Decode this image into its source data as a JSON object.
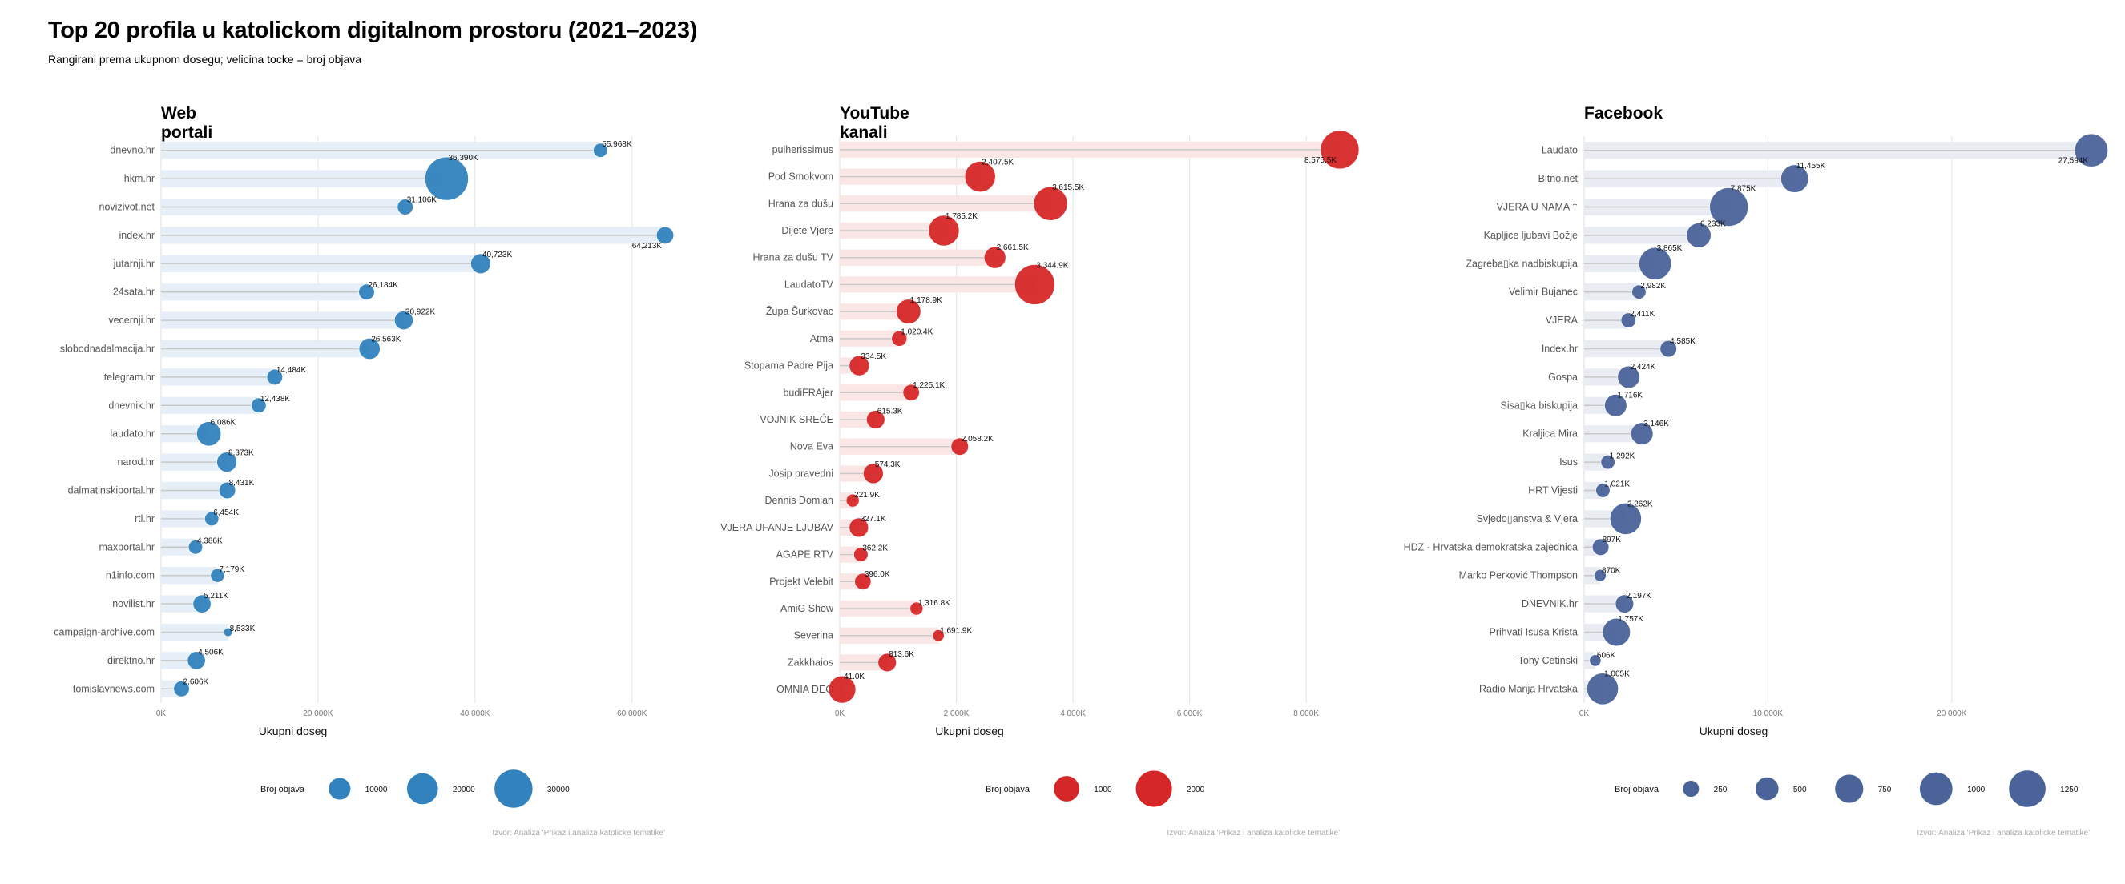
{
  "header": {
    "title": "Top 20 profila u katolickom digitalnom prostoru (2021–2023)",
    "subtitle": "Rangirani prema ukupnom dosegu; velicina tocke = broj objava"
  },
  "chart_data": [
    {
      "type": "scatter",
      "title": "Web portali",
      "xlabel": "Ukupni doseg",
      "ylabel": "",
      "xlim": [
        0,
        64213
      ],
      "xticks": [
        0,
        20000,
        40000,
        60000
      ],
      "xtick_labels": [
        "0K",
        "20 000K",
        "40 000K",
        "60 000K"
      ],
      "grid": true,
      "color": "#3182bd",
      "band_color": "#e6eef7",
      "categories": [
        "dnevno.hr",
        "hkm.hr",
        "novizivot.net",
        "index.hr",
        "jutarnji.hr",
        "24sata.hr",
        "vecernji.hr",
        "slobodnadalmacija.hr",
        "telegram.hr",
        "dnevnik.hr",
        "laudato.hr",
        "narod.hr",
        "dalmatinskiportal.hr",
        "rtl.hr",
        "maxportal.hr",
        "n1info.com",
        "novilist.hr",
        "campaign-archive.com",
        "direktno.hr",
        "tomislavnews.com"
      ],
      "values": [
        55968,
        36390,
        31106,
        64213,
        40723,
        26184,
        30922,
        26563,
        14484,
        12438,
        6086,
        8373,
        8431,
        6454,
        4386,
        7179,
        5211,
        8533,
        4506,
        2606
      ],
      "value_labels": [
        "55,968K",
        "36,390K",
        "31,106K",
        "64,213K",
        "40,723K",
        "26,184K",
        "30,922K",
        "26,563K",
        "14,484K",
        "12,438K",
        "6,086K",
        "8,373K",
        "8,431K",
        "6,454K",
        "4,386K",
        "7,179K",
        "5,211K",
        "8,533K",
        "4,506K",
        "2,606K"
      ],
      "sizes": [
        4000,
        38000,
        5000,
        6000,
        8000,
        5000,
        7000,
        9000,
        5000,
        4500,
        12000,
        8000,
        5500,
        4000,
        4000,
        3800,
        6500,
        1500,
        6500,
        5000
      ],
      "legend": {
        "title": "Broj objava",
        "values": [
          10000,
          20000,
          30000
        ],
        "labels": [
          "10000",
          "20000",
          "30000"
        ],
        "max_size": 38000
      },
      "source": "Izvor: Analiza 'Prikaz i analiza katolicke tematike'"
    },
    {
      "type": "scatter",
      "title": "YouTube kanali",
      "xlabel": "Ukupni doseg",
      "ylabel": "",
      "xlim": [
        0,
        8575.5
      ],
      "xticks": [
        0,
        2000,
        4000,
        6000,
        8000
      ],
      "xtick_labels": [
        "0K",
        "2 000K",
        "4 000K",
        "6 000K",
        "8 000K"
      ],
      "grid": true,
      "color": "#d62728",
      "band_color": "#fbe6e6",
      "categories": [
        "pulherissimus",
        "Pod Smokvom",
        "Hrana za dušu",
        "Dijete Vjere",
        "Hrana za dušu TV",
        "LaudatoTV",
        "Župa Šurkovac",
        "Atma",
        "Stopama Padre Pija",
        "budiFRAjer",
        "VOJNIK SREĆE",
        "Nova Eva",
        "Josip pravedni",
        "Dennis Domian",
        "VJERA UFANJE LJUBAV",
        "AGAPE RTV",
        "Projekt Velebit",
        "AmiG Show",
        "Severina",
        "Zakkhaios",
        "OMNIA DEO"
      ],
      "values": [
        8575.5,
        2407.5,
        3615.5,
        1785.2,
        2661.5,
        3344.9,
        1178.9,
        1020.4,
        334.5,
        1225.1,
        615.3,
        2058.2,
        574.3,
        221.9,
        327.1,
        362.2,
        396.0,
        1316.8,
        1691.9,
        813.6,
        41.0
      ],
      "value_labels": [
        "8,575.5K",
        "2,407.5K",
        "3,615.5K",
        "1,785.2K",
        "2,661.5K",
        "3,344.9K",
        "1,178.9K",
        "1,020.4K",
        "334.5K",
        "1,225.1K",
        "615.3K",
        "2,058.2K",
        "574.3K",
        "221.9K",
        "327.1K",
        "362.2K",
        "396.0K",
        "1,316.8K",
        "1,691.9K",
        "813.6K",
        "41.0K"
      ],
      "sizes": [
        2200,
        1400,
        1700,
        1400,
        700,
        2400,
        900,
        350,
        600,
        400,
        500,
        450,
        600,
        250,
        550,
        300,
        400,
        250,
        200,
        500,
        1100
      ],
      "legend": {
        "title": "Broj objava",
        "values": [
          1000,
          2000
        ],
        "labels": [
          "1000",
          "2000"
        ],
        "max_size": 2400
      },
      "source": "Izvor: Analiza 'Prikaz i analiza katolicke tematike'"
    },
    {
      "type": "scatter",
      "title": "Facebook",
      "xlabel": "Ukupni doseg",
      "ylabel": "",
      "xlim": [
        0,
        27594
      ],
      "xticks": [
        0,
        10000,
        20000
      ],
      "xtick_labels": [
        "0K",
        "10 000K",
        "20 000K"
      ],
      "grid": true,
      "color": "#4a6399",
      "band_color": "#e9ecf3",
      "categories": [
        "Laudato",
        "Bitno.net",
        "VJERA U NAMA †",
        "Kapljice ljubavi Božje",
        "Zagreba\u0000ka nadbiskupija",
        "Velimir Bujanec",
        "VJERA",
        "Index.hr",
        "Gospa",
        "Sisa\u0000ka biskupija",
        "Kraljica Mira",
        "Isus",
        "HRT Vijesti",
        "Svjedo\u0000anstva & Vjera",
        "HDZ - Hrvatska demokratska zajednica",
        "Marko Perković Thompson",
        "DNEVNIK.hr",
        "Prihvati Isusa Krista",
        "Tony Cetinski",
        "Radio Marija Hrvatska"
      ],
      "values": [
        27594,
        11455,
        7875,
        6233,
        3865,
        2982,
        2411,
        4585,
        2424,
        1716,
        3146,
        1292,
        1021,
        2262,
        897,
        870,
        2197,
        1757,
        606,
        1005
      ],
      "value_labels": [
        "27,594K",
        "11,455K",
        "7,875K",
        "6,233K",
        "3,865K",
        "2,982K",
        "2,411K",
        "4,585K",
        "2,424K",
        "1,716K",
        "3,146K",
        "1,292K",
        "1,021K",
        "2,262K",
        "897K",
        "870K",
        "2,197K",
        "1,757K",
        "606K",
        "1,005K"
      ],
      "sizes": [
        1000,
        700,
        1350,
        550,
        950,
        180,
        200,
        250,
        450,
        450,
        450,
        180,
        180,
        900,
        250,
        130,
        300,
        700,
        120,
        900
      ],
      "legend": {
        "title": "Broj objava",
        "values": [
          250,
          500,
          750,
          1000,
          1250
        ],
        "labels": [
          "250",
          "500",
          "750",
          "1000",
          "1250"
        ],
        "max_size": 1350
      },
      "source": "Izvor: Analiza 'Prikaz i analiza katolicke tematike'"
    }
  ]
}
